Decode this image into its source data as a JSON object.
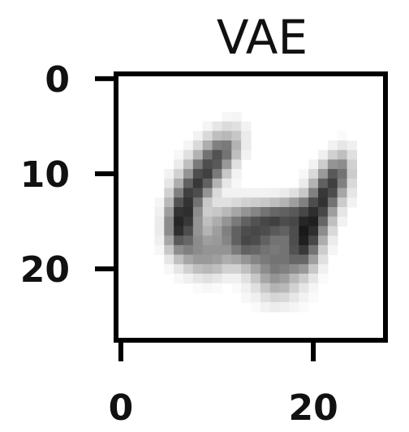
{
  "chart_data": {
    "type": "heatmap",
    "title": "VAE",
    "xlabel": "",
    "ylabel": "",
    "colormap": "gray_r",
    "xlim": [
      -0.5,
      27.5
    ],
    "ylim": [
      27.5,
      -0.5
    ],
    "x_ticks": [
      0,
      20
    ],
    "y_ticks": [
      0,
      10,
      20
    ],
    "x_tick_labels": [
      "0",
      "20"
    ],
    "y_tick_labels": [
      "0",
      "10",
      "20"
    ],
    "grid": false,
    "rows": 28,
    "cols": 28,
    "values": [
      [
        0,
        0,
        0,
        0,
        0,
        0,
        0,
        0,
        0,
        0,
        0,
        0,
        0,
        0,
        0,
        0,
        0,
        0,
        0,
        0,
        0,
        0,
        0,
        0,
        0,
        0,
        0,
        0
      ],
      [
        0,
        0,
        0,
        0,
        0,
        0,
        0,
        0,
        0,
        0,
        0,
        0,
        0,
        0,
        0,
        0,
        0,
        0,
        0,
        0,
        0,
        0,
        0,
        0,
        0,
        0,
        0,
        0
      ],
      [
        0,
        0,
        0,
        0,
        0,
        0,
        0,
        0,
        0,
        0,
        0,
        0,
        0,
        0,
        0,
        0,
        0,
        0,
        0,
        0,
        0,
        0,
        0,
        0,
        0,
        0,
        0,
        0
      ],
      [
        0,
        0,
        0,
        0,
        0,
        0,
        0,
        0,
        0,
        0,
        0,
        0,
        0,
        0,
        0,
        0,
        0,
        0,
        0,
        0,
        0,
        0,
        0,
        0,
        0,
        0,
        0,
        0
      ],
      [
        0,
        0,
        0,
        0,
        0,
        0,
        0,
        0,
        0,
        0,
        0,
        0.03,
        0.04,
        0,
        0,
        0,
        0,
        0,
        0,
        0,
        0,
        0,
        0,
        0,
        0,
        0,
        0,
        0
      ],
      [
        0,
        0,
        0,
        0,
        0,
        0,
        0,
        0,
        0,
        0.04,
        0.1,
        0.14,
        0.12,
        0.05,
        0,
        0,
        0,
        0,
        0,
        0,
        0,
        0,
        0,
        0,
        0,
        0,
        0,
        0
      ],
      [
        0,
        0,
        0,
        0,
        0,
        0,
        0,
        0,
        0.05,
        0.15,
        0.25,
        0.28,
        0.22,
        0.08,
        0,
        0,
        0,
        0,
        0,
        0,
        0,
        0,
        0,
        0.02,
        0,
        0,
        0,
        0
      ],
      [
        0,
        0,
        0,
        0,
        0,
        0,
        0,
        0.04,
        0.15,
        0.32,
        0.5,
        0.52,
        0.3,
        0.08,
        0,
        0,
        0,
        0,
        0,
        0,
        0,
        0,
        0.05,
        0.1,
        0.06,
        0,
        0,
        0
      ],
      [
        0,
        0,
        0,
        0,
        0,
        0,
        0.03,
        0.12,
        0.3,
        0.55,
        0.68,
        0.55,
        0.25,
        0.05,
        0,
        0,
        0,
        0,
        0,
        0,
        0,
        0.06,
        0.18,
        0.25,
        0.12,
        0,
        0,
        0
      ],
      [
        0,
        0,
        0,
        0,
        0,
        0,
        0.08,
        0.25,
        0.52,
        0.7,
        0.65,
        0.4,
        0.12,
        0,
        0,
        0,
        0,
        0,
        0,
        0,
        0.05,
        0.2,
        0.42,
        0.45,
        0.18,
        0,
        0,
        0
      ],
      [
        0,
        0,
        0,
        0,
        0,
        0.05,
        0.18,
        0.42,
        0.7,
        0.75,
        0.52,
        0.22,
        0.05,
        0,
        0,
        0,
        0,
        0,
        0,
        0.03,
        0.15,
        0.4,
        0.65,
        0.55,
        0.2,
        0,
        0,
        0
      ],
      [
        0,
        0,
        0,
        0,
        0,
        0.1,
        0.32,
        0.62,
        0.78,
        0.62,
        0.3,
        0.1,
        0.03,
        0,
        0,
        0,
        0,
        0,
        0,
        0.08,
        0.3,
        0.62,
        0.75,
        0.5,
        0.15,
        0,
        0,
        0
      ],
      [
        0,
        0,
        0,
        0,
        0,
        0.18,
        0.5,
        0.75,
        0.7,
        0.42,
        0.15,
        0.05,
        0.05,
        0.05,
        0.05,
        0.05,
        0.06,
        0.08,
        0.12,
        0.22,
        0.5,
        0.78,
        0.7,
        0.35,
        0.1,
        0,
        0,
        0
      ],
      [
        0,
        0,
        0,
        0,
        0.04,
        0.28,
        0.68,
        0.8,
        0.55,
        0.22,
        0.12,
        0.12,
        0.15,
        0.18,
        0.2,
        0.22,
        0.25,
        0.3,
        0.38,
        0.5,
        0.7,
        0.8,
        0.55,
        0.2,
        0.05,
        0,
        0,
        0
      ],
      [
        0,
        0,
        0,
        0,
        0.06,
        0.38,
        0.8,
        0.82,
        0.45,
        0.2,
        0.22,
        0.28,
        0.35,
        0.42,
        0.48,
        0.55,
        0.6,
        0.62,
        0.65,
        0.72,
        0.82,
        0.72,
        0.38,
        0.1,
        0,
        0,
        0,
        0
      ],
      [
        0,
        0,
        0,
        0,
        0.08,
        0.45,
        0.85,
        0.78,
        0.42,
        0.25,
        0.32,
        0.42,
        0.52,
        0.62,
        0.68,
        0.72,
        0.75,
        0.7,
        0.72,
        0.85,
        0.88,
        0.6,
        0.25,
        0.05,
        0,
        0,
        0,
        0
      ],
      [
        0,
        0,
        0,
        0,
        0.08,
        0.45,
        0.82,
        0.7,
        0.42,
        0.3,
        0.38,
        0.5,
        0.62,
        0.7,
        0.72,
        0.7,
        0.65,
        0.62,
        0.7,
        0.9,
        0.82,
        0.45,
        0.15,
        0,
        0,
        0,
        0,
        0
      ],
      [
        0,
        0,
        0,
        0,
        0.06,
        0.35,
        0.65,
        0.6,
        0.45,
        0.38,
        0.4,
        0.48,
        0.62,
        0.72,
        0.7,
        0.62,
        0.55,
        0.55,
        0.7,
        0.88,
        0.72,
        0.32,
        0.08,
        0,
        0,
        0,
        0,
        0
      ],
      [
        0,
        0,
        0,
        0,
        0.03,
        0.22,
        0.45,
        0.5,
        0.45,
        0.42,
        0.42,
        0.42,
        0.52,
        0.62,
        0.6,
        0.55,
        0.52,
        0.55,
        0.68,
        0.78,
        0.55,
        0.2,
        0.04,
        0,
        0,
        0,
        0,
        0
      ],
      [
        0,
        0,
        0,
        0,
        0,
        0.1,
        0.25,
        0.35,
        0.4,
        0.4,
        0.38,
        0.32,
        0.35,
        0.42,
        0.48,
        0.52,
        0.55,
        0.55,
        0.6,
        0.6,
        0.38,
        0.12,
        0,
        0,
        0,
        0,
        0,
        0
      ],
      [
        0,
        0,
        0,
        0,
        0,
        0.03,
        0.1,
        0.18,
        0.25,
        0.28,
        0.25,
        0.18,
        0.18,
        0.25,
        0.35,
        0.45,
        0.52,
        0.5,
        0.45,
        0.4,
        0.22,
        0.06,
        0,
        0,
        0,
        0,
        0,
        0
      ],
      [
        0,
        0,
        0,
        0,
        0,
        0,
        0.03,
        0.06,
        0.1,
        0.12,
        0.1,
        0.06,
        0.06,
        0.12,
        0.22,
        0.35,
        0.42,
        0.38,
        0.28,
        0.2,
        0.1,
        0.02,
        0,
        0,
        0,
        0,
        0,
        0
      ],
      [
        0,
        0,
        0,
        0,
        0,
        0,
        0,
        0,
        0.02,
        0.03,
        0.02,
        0,
        0.02,
        0.06,
        0.12,
        0.22,
        0.3,
        0.28,
        0.18,
        0.1,
        0.04,
        0,
        0,
        0,
        0,
        0,
        0,
        0
      ],
      [
        0,
        0,
        0,
        0,
        0,
        0,
        0,
        0,
        0,
        0,
        0,
        0,
        0,
        0.03,
        0.06,
        0.12,
        0.16,
        0.15,
        0.1,
        0.05,
        0.02,
        0,
        0,
        0,
        0,
        0,
        0,
        0
      ],
      [
        0,
        0,
        0,
        0,
        0,
        0,
        0,
        0,
        0,
        0,
        0,
        0,
        0,
        0,
        0.02,
        0.05,
        0.07,
        0.06,
        0.04,
        0.02,
        0,
        0,
        0,
        0,
        0,
        0,
        0,
        0
      ],
      [
        0,
        0,
        0,
        0,
        0,
        0,
        0,
        0,
        0,
        0,
        0,
        0,
        0,
        0,
        0,
        0,
        0,
        0,
        0,
        0,
        0,
        0,
        0,
        0,
        0,
        0,
        0,
        0
      ],
      [
        0,
        0,
        0,
        0,
        0,
        0,
        0,
        0,
        0,
        0,
        0,
        0,
        0,
        0,
        0,
        0,
        0,
        0,
        0,
        0,
        0,
        0,
        0,
        0,
        0,
        0,
        0,
        0
      ],
      [
        0,
        0,
        0,
        0,
        0,
        0,
        0,
        0,
        0,
        0,
        0,
        0,
        0,
        0,
        0,
        0,
        0,
        0,
        0,
        0,
        0,
        0,
        0,
        0,
        0,
        0,
        0,
        0
      ]
    ]
  }
}
